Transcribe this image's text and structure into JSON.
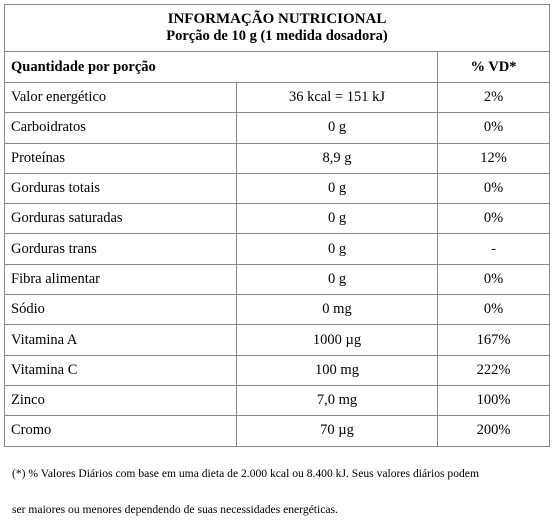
{
  "title": {
    "line1": "INFORMAÇÃO NUTRICIONAL",
    "line2": "Porção de 10 g (1 medida dosadora)"
  },
  "header": {
    "col1": "Quantidade por porção",
    "col2": "",
    "col3": "% VD*"
  },
  "rows": [
    {
      "nutrient": "Valor energético",
      "amount": "36 kcal = 151 kJ",
      "vd": "2%"
    },
    {
      "nutrient": "Carboidratos",
      "amount": "0 g",
      "vd": "0%"
    },
    {
      "nutrient": "Proteínas",
      "amount": "8,9 g",
      "vd": "12%"
    },
    {
      "nutrient": "Gorduras totais",
      "amount": "0 g",
      "vd": "0%"
    },
    {
      "nutrient": "Gorduras saturadas",
      "amount": "0 g",
      "vd": "0%"
    },
    {
      "nutrient": "Gorduras trans",
      "amount": "0 g",
      "vd": "-"
    },
    {
      "nutrient": "Fibra alimentar",
      "amount": "0 g",
      "vd": "0%"
    },
    {
      "nutrient": "Sódio",
      "amount": "0 mg",
      "vd": "0%"
    },
    {
      "nutrient": "Vitamina A",
      "amount": "1000 µg",
      "vd": "167%"
    },
    {
      "nutrient": "Vitamina C",
      "amount": "100 mg",
      "vd": "222%"
    },
    {
      "nutrient": "Zinco",
      "amount": "7,0 mg",
      "vd": "100%"
    },
    {
      "nutrient": "Cromo",
      "amount": "70 µg",
      "vd": "200%"
    }
  ],
  "footnote": {
    "line1": "(*) % Valores Diários com base em uma dieta de 2.000 kcal ou 8.400 kJ. Seus valores diários podem",
    "line2": "ser maiores ou menores dependendo de suas necessidades energéticas."
  }
}
